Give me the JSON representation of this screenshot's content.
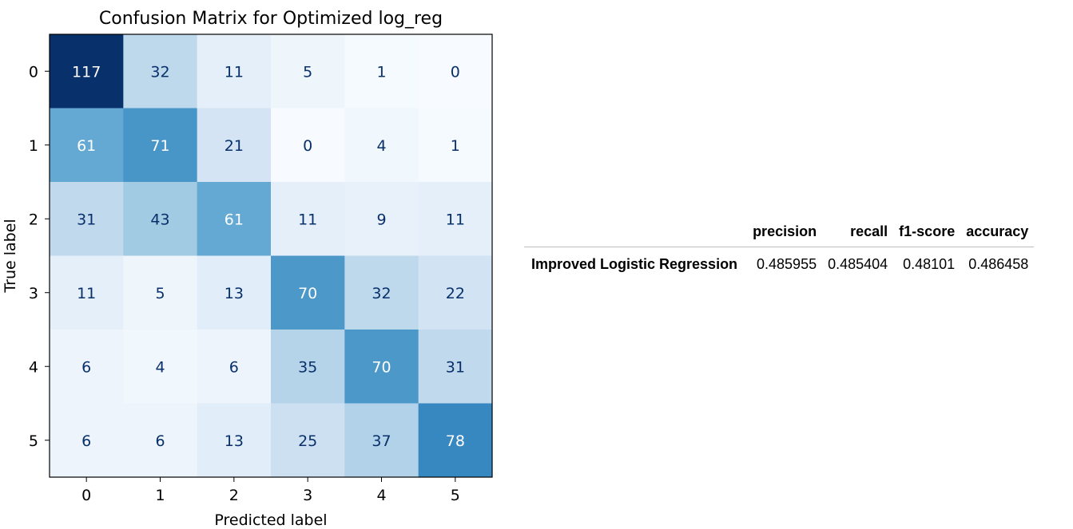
{
  "chart_data": {
    "type": "heatmap",
    "title": "Confusion Matrix for Optimized log_reg",
    "xlabel": "Predicted label",
    "ylabel": "True label",
    "x_categories": [
      "0",
      "1",
      "2",
      "3",
      "4",
      "5"
    ],
    "y_categories": [
      "0",
      "1",
      "2",
      "3",
      "4",
      "5"
    ],
    "values": [
      [
        117,
        32,
        11,
        5,
        1,
        0
      ],
      [
        61,
        71,
        21,
        0,
        4,
        1
      ],
      [
        31,
        43,
        61,
        11,
        9,
        11
      ],
      [
        11,
        5,
        13,
        70,
        32,
        22
      ],
      [
        6,
        4,
        6,
        35,
        70,
        31
      ],
      [
        6,
        6,
        13,
        25,
        37,
        78
      ]
    ],
    "value_range": [
      0,
      117
    ],
    "colormap": "Blues",
    "colors": {
      "low": "#f7fbff",
      "high": "#08306b",
      "text_light": "#ffffff",
      "text_dark": "#08306b"
    }
  },
  "metrics_table": {
    "columns": [
      "",
      "precision",
      "recall",
      "f1-score",
      "accuracy"
    ],
    "rows": [
      {
        "label": "Improved Logistic Regression",
        "values": [
          "0.485955",
          "0.485404",
          "0.48101",
          "0.486458"
        ]
      }
    ]
  }
}
